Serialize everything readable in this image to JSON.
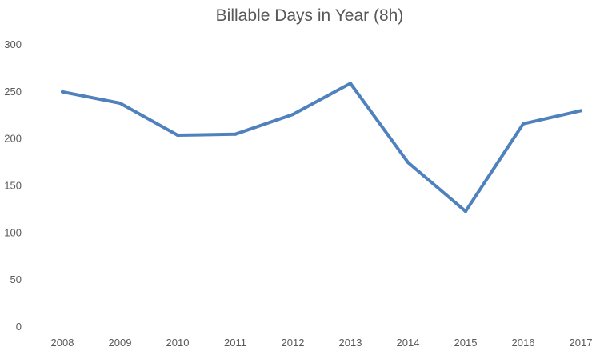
{
  "chart_data": {
    "type": "line",
    "title": "Billable Days in Year (8h)",
    "xlabel": "",
    "ylabel": "",
    "categories": [
      "2008",
      "2009",
      "2010",
      "2011",
      "2012",
      "2013",
      "2014",
      "2015",
      "2016",
      "2017"
    ],
    "series": [
      {
        "values": [
          250,
          238,
          204,
          205,
          226,
          259,
          175,
          123,
          216,
          230
        ],
        "color": "#4f81bd"
      }
    ],
    "ylim": [
      0,
      300
    ],
    "yticks": [
      0,
      50,
      100,
      150,
      200,
      250,
      300
    ],
    "grid": false,
    "legend": "none"
  }
}
